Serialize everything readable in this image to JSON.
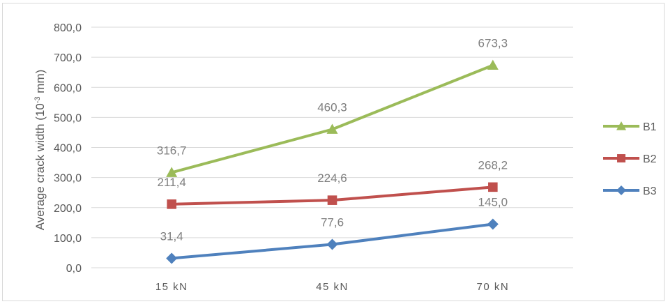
{
  "chart_data": {
    "type": "line",
    "categories": [
      "15 kN",
      "45 kN",
      "70 kN"
    ],
    "series": [
      {
        "name": "B1",
        "values": [
          316.7,
          460.3,
          673.3
        ],
        "labels": [
          "316,7",
          "460,3",
          "673,3"
        ],
        "color": "#9bbb59",
        "marker": "triangle"
      },
      {
        "name": "B2",
        "values": [
          211.4,
          224.6,
          268.2
        ],
        "labels": [
          "211,4",
          "224,6",
          "268,2"
        ],
        "color": "#c0504d",
        "marker": "square"
      },
      {
        "name": "B3",
        "values": [
          31.4,
          77.6,
          145.0
        ],
        "labels": [
          "31,4",
          "77,6",
          "145,0"
        ],
        "color": "#4f81bd",
        "marker": "diamond"
      }
    ],
    "ylabel_main": "Average crack width  (10",
    "ylabel_sup": "-3",
    "ylabel_end": " mm)",
    "ylim": [
      0,
      800
    ],
    "yticks": [
      "0,0",
      "100,0",
      "200,0",
      "300,0",
      "400,0",
      "500,0",
      "600,0",
      "700,0",
      "800,0"
    ],
    "ytick_values": [
      0,
      100,
      200,
      300,
      400,
      500,
      600,
      700,
      800
    ],
    "grid": true,
    "legend_position": "right"
  }
}
